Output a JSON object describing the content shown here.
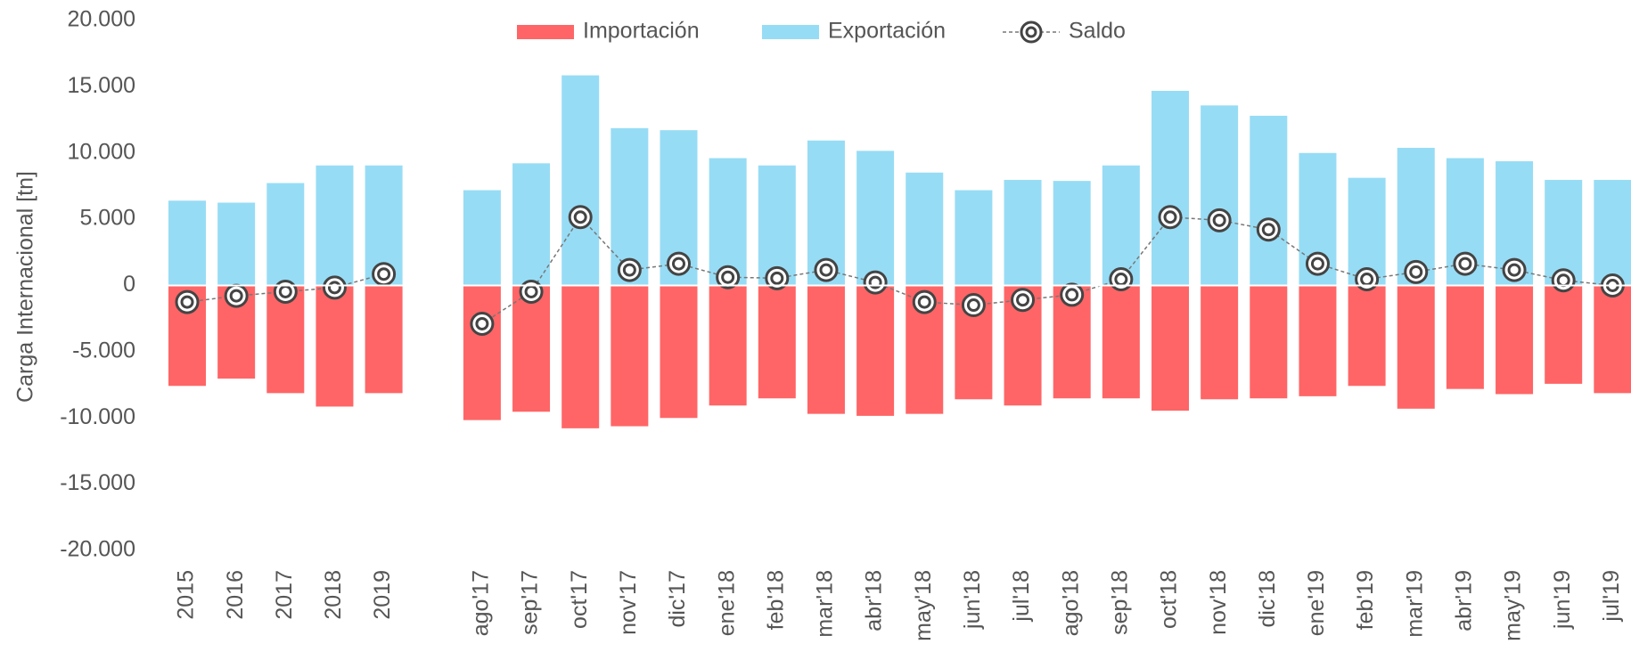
{
  "chart_data": {
    "type": "bar",
    "stacked": true,
    "y_label": "Carga Internacional [tn]",
    "categories": [
      "2015",
      "2016",
      "2017",
      "2018",
      "2019",
      null,
      "ago'17",
      "sep'17",
      "oct'17",
      "nov'17",
      "dic'17",
      "ene'18",
      "feb'18",
      "mar'18",
      "abr'18",
      "may'18",
      "jun'18",
      "jul'18",
      "ago'18",
      "sep'18",
      "oct'18",
      "nov'18",
      "dic'18",
      "ene'19",
      "feb'19",
      "mar'19",
      "abr'19",
      "may'19",
      "jun'19",
      "jul'19"
    ],
    "series": [
      {
        "name": "Importación",
        "type": "bar",
        "color": "#ff6566",
        "values": [
          -7580,
          -7030,
          -8125,
          -9140,
          -8125,
          null,
          -10160,
          -9530,
          -10780,
          -10625,
          -10000,
          -9060,
          -8520,
          -9690,
          -9840,
          -9690,
          -8590,
          -9060,
          -8520,
          -8520,
          -9450,
          -8590,
          -8520,
          -8360,
          -7580,
          -9300,
          -7810,
          -8200,
          -7420,
          -8125
        ]
      },
      {
        "name": "Exportación",
        "type": "bar",
        "color": "#97dcf5",
        "values": [
          6400,
          6250,
          7730,
          9060,
          9060,
          null,
          7190,
          9220,
          15860,
          11875,
          11720,
          9610,
          9060,
          10940,
          10160,
          8520,
          7190,
          7970,
          7890,
          9060,
          14690,
          13590,
          12810,
          10000,
          8125,
          10390,
          9610,
          9375,
          7970,
          7970
        ]
      },
      {
        "name": "Saldo",
        "type": "line",
        "color": "#444444",
        "values": [
          -1250,
          -780,
          -470,
          -160,
          860,
          null,
          -2890,
          -470,
          5160,
          1170,
          1640,
          625,
          550,
          1170,
          230,
          -1250,
          -1480,
          -1090,
          -700,
          470,
          5160,
          4920,
          4220,
          1640,
          470,
          1020,
          1640,
          1170,
          390,
          0
        ]
      }
    ],
    "ylim": [
      -20000,
      20000
    ],
    "yticks": [
      {
        "value": -20000,
        "label": "-20.000"
      },
      {
        "value": -15000,
        "label": "-15.000"
      },
      {
        "value": -10000,
        "label": "-10.000"
      },
      {
        "value": -5000,
        "label": "-5.000"
      },
      0,
      {
        "value": 5000,
        "label": "5.000"
      },
      {
        "value": 10000,
        "label": "10.000"
      },
      {
        "value": 15000,
        "label": "15.000"
      },
      {
        "value": 20000,
        "label": "20.000"
      }
    ],
    "grid": false,
    "legend": "top"
  }
}
